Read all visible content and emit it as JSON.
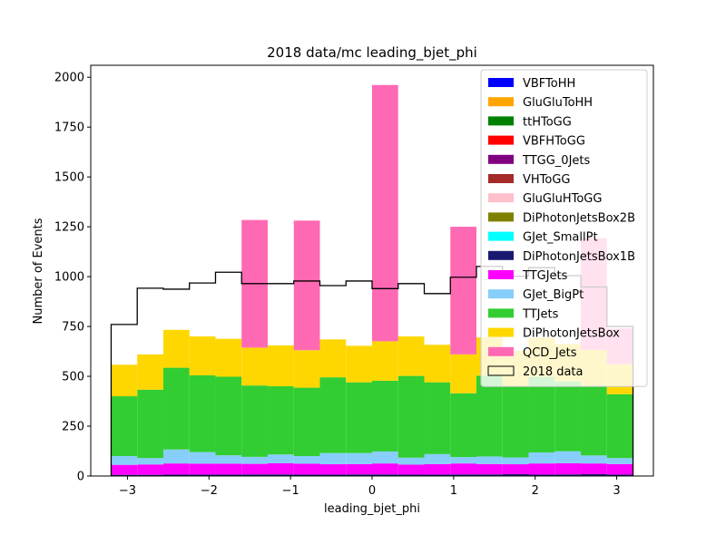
{
  "chart_data": {
    "type": "stacked-histogram",
    "title": "2018 data/mc leading_bjet_phi",
    "xlabel": "leading_bjet_phi",
    "ylabel": "Number of Events",
    "xlim": [
      -3.45,
      3.45
    ],
    "ylim": [
      0,
      2060
    ],
    "xticks": [
      -3,
      -2,
      -1,
      0,
      1,
      2,
      3
    ],
    "xtick_labels": [
      "−3",
      "−2",
      "−1",
      "0",
      "1",
      "2",
      "3"
    ],
    "yticks": [
      0,
      250,
      500,
      750,
      1000,
      1250,
      1500,
      1750,
      2000
    ],
    "ytick_labels": [
      "0",
      "250",
      "500",
      "750",
      "1000",
      "1250",
      "1500",
      "1750",
      "2000"
    ],
    "bin_edges": [
      -3.2,
      -2.88,
      -2.56,
      -2.24,
      -1.92,
      -1.6,
      -1.28,
      -0.96,
      -0.64,
      -0.32,
      0.0,
      0.32,
      0.64,
      0.96,
      1.28,
      1.6,
      1.92,
      2.24,
      2.56,
      2.88,
      3.2
    ],
    "legend_position": "upper right",
    "series": [
      {
        "name": "VBFToHH",
        "color": "#0000ff",
        "values": [
          0,
          0,
          0,
          0,
          0,
          0,
          0,
          0,
          0,
          0,
          0,
          0,
          0,
          0,
          0,
          0,
          0,
          0,
          0,
          0
        ]
      },
      {
        "name": "GluGluToHH",
        "color": "#ffa500",
        "values": [
          0,
          0,
          0,
          0,
          0,
          0,
          0,
          0,
          0,
          0,
          0,
          0,
          0,
          0,
          0,
          0,
          0,
          0,
          0,
          0
        ]
      },
      {
        "name": "ttHToGG",
        "color": "#008000",
        "values": [
          0,
          0,
          0,
          0,
          0,
          0,
          0,
          0,
          0,
          0,
          0,
          0,
          0,
          0,
          0,
          0,
          0,
          0,
          0,
          0
        ]
      },
      {
        "name": "VBFHToGG",
        "color": "#ff0000",
        "values": [
          0,
          0,
          0,
          0,
          0,
          0,
          0,
          0,
          0,
          0,
          0,
          0,
          0,
          0,
          0,
          0,
          0,
          0,
          0,
          0
        ]
      },
      {
        "name": "TTGG_0Jets",
        "color": "#800080",
        "values": [
          0,
          0,
          0,
          0,
          0,
          0,
          0,
          0,
          0,
          0,
          0,
          0,
          0,
          0,
          0,
          0,
          0,
          0,
          0,
          0
        ]
      },
      {
        "name": "VHToGG",
        "color": "#a52a2a",
        "values": [
          0,
          0,
          0,
          0,
          0,
          0,
          0,
          0,
          0,
          0,
          0,
          0,
          0,
          0,
          0,
          0,
          0,
          0,
          0,
          0
        ]
      },
      {
        "name": "GluGluHToGG",
        "color": "#ffc0cb",
        "values": [
          0,
          0,
          0,
          0,
          0,
          0,
          0,
          0,
          0,
          0,
          0,
          0,
          0,
          0,
          0,
          0,
          0,
          0,
          0,
          0
        ]
      },
      {
        "name": "DiPhotonJetsBox2B",
        "color": "#808000",
        "values": [
          0,
          0,
          0,
          0,
          0,
          0,
          0,
          0,
          0,
          0,
          0,
          0,
          0,
          0,
          0,
          0,
          0,
          0,
          0,
          0
        ]
      },
      {
        "name": "GJet_SmallPt",
        "color": "#00ffff",
        "values": [
          0,
          0,
          0,
          0,
          0,
          0,
          0,
          0,
          0,
          0,
          0,
          0,
          0,
          0,
          0,
          0,
          0,
          0,
          0,
          0
        ]
      },
      {
        "name": "DiPhotonJetsBox1B",
        "color": "#191970",
        "values": [
          6,
          6,
          7,
          7,
          7,
          8,
          8,
          7,
          7,
          8,
          8,
          7,
          7,
          8,
          8,
          9,
          7,
          8,
          9,
          7
        ]
      },
      {
        "name": "TTGJets",
        "color": "#ff00ff",
        "values": [
          50,
          52,
          56,
          55,
          55,
          53,
          56,
          55,
          52,
          52,
          55,
          50,
          53,
          55,
          52,
          50,
          56,
          56,
          54,
          53
        ]
      },
      {
        "name": "GJet_BigPt",
        "color": "#87cefa",
        "values": [
          44,
          32,
          70,
          58,
          42,
          35,
          44,
          38,
          56,
          55,
          60,
          35,
          50,
          32,
          38,
          34,
          55,
          60,
          40,
          30
        ]
      },
      {
        "name": "TTJets",
        "color": "#32cd32",
        "values": [
          300,
          343,
          410,
          385,
          394,
          358,
          342,
          343,
          380,
          355,
          355,
          410,
          360,
          320,
          405,
          357,
          380,
          350,
          350,
          320
        ]
      },
      {
        "name": "DiPhotonJetsBox",
        "color": "#ffd700",
        "values": [
          158,
          177,
          190,
          195,
          190,
          190,
          205,
          188,
          190,
          183,
          198,
          198,
          188,
          195,
          192,
          178,
          195,
          188,
          180,
          150
        ]
      },
      {
        "name": "QCD_Jets",
        "color": "#ff69b4",
        "values": [
          0,
          0,
          0,
          0,
          0,
          640,
          0,
          650,
          0,
          0,
          1285,
          0,
          0,
          640,
          0,
          0,
          0,
          0,
          560,
          180
        ]
      },
      {
        "name": "2018 data",
        "color": "#000000",
        "kind": "step",
        "values": [
          760,
          942,
          937,
          968,
          1022,
          965,
          965,
          978,
          955,
          978,
          940,
          965,
          915,
          997,
          1051,
          1002,
          1045,
          1005,
          948,
          750
        ]
      }
    ]
  }
}
